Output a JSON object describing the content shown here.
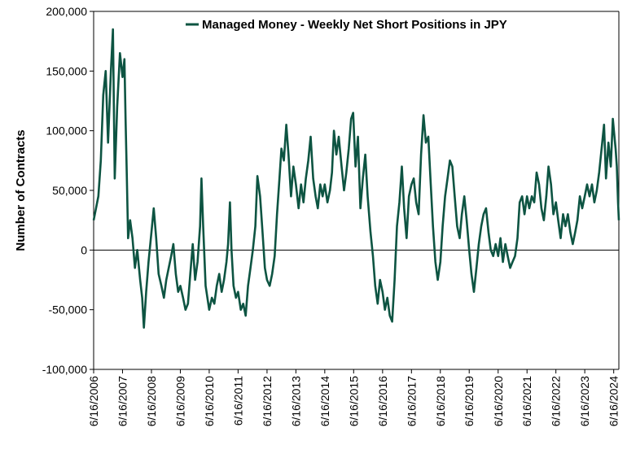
{
  "chart_data": {
    "type": "line",
    "title": "",
    "xlabel": "",
    "ylabel": "Number of Contracts",
    "ylim": [
      -100000,
      200000
    ],
    "y_ticks": [
      200000,
      150000,
      100000,
      50000,
      0,
      -50000,
      -100000
    ],
    "y_tick_labels": [
      "200,000",
      "150,000",
      "100,000",
      "50,000",
      "0",
      "-50,000",
      "-100,000"
    ],
    "x_ticks": [
      "2006-06-16",
      "2007-06-16",
      "2008-06-16",
      "2009-06-16",
      "2010-06-16",
      "2011-06-16",
      "2012-06-16",
      "2013-06-16",
      "2014-06-16",
      "2015-06-16",
      "2016-06-16",
      "2017-06-16",
      "2018-06-16",
      "2019-06-16",
      "2020-06-16",
      "2021-06-16",
      "2022-06-16",
      "2023-06-16",
      "2024-06-16"
    ],
    "x_tick_labels": [
      "6/16/2006",
      "6/16/2007",
      "6/16/2008",
      "6/16/2009",
      "6/16/2010",
      "6/16/2011",
      "6/16/2012",
      "6/16/2013",
      "6/16/2014",
      "6/16/2015",
      "6/16/2016",
      "6/16/2017",
      "6/16/2018",
      "6/16/2019",
      "6/16/2020",
      "6/16/2021",
      "6/16/2022",
      "6/16/2023",
      "6/16/2024"
    ],
    "xlim": [
      "2006-06-16",
      "2024-08-20"
    ],
    "grid": false,
    "legend_position": "top-right",
    "series": [
      {
        "name": "Managed Money - Weekly Net Short Positions in JPY",
        "color": "#0d5442",
        "points": [
          [
            "2006-06-16",
            25000
          ],
          [
            "2006-08-15",
            45000
          ],
          [
            "2006-09-15",
            75000
          ],
          [
            "2006-10-15",
            130000
          ],
          [
            "2006-11-15",
            150000
          ],
          [
            "2006-12-15",
            90000
          ],
          [
            "2007-01-20",
            150000
          ],
          [
            "2007-02-15",
            185000
          ],
          [
            "2007-03-10",
            60000
          ],
          [
            "2007-04-10",
            120000
          ],
          [
            "2007-05-15",
            165000
          ],
          [
            "2007-06-16",
            145000
          ],
          [
            "2007-07-10",
            160000
          ],
          [
            "2007-07-25",
            110000
          ],
          [
            "2007-08-10",
            60000
          ],
          [
            "2007-08-25",
            10000
          ],
          [
            "2007-09-20",
            25000
          ],
          [
            "2007-10-20",
            10000
          ],
          [
            "2007-11-20",
            -15000
          ],
          [
            "2007-12-20",
            0
          ],
          [
            "2008-01-25",
            -25000
          ],
          [
            "2008-02-20",
            -40000
          ],
          [
            "2008-03-12",
            -65000
          ],
          [
            "2008-04-10",
            -35000
          ],
          [
            "2008-05-10",
            -10000
          ],
          [
            "2008-06-16",
            15000
          ],
          [
            "2008-07-15",
            35000
          ],
          [
            "2008-08-15",
            10000
          ],
          [
            "2008-09-15",
            -20000
          ],
          [
            "2008-10-20",
            -30000
          ],
          [
            "2008-11-20",
            -40000
          ],
          [
            "2008-12-20",
            -25000
          ],
          [
            "2009-01-20",
            -15000
          ],
          [
            "2009-02-20",
            -5000
          ],
          [
            "2009-03-20",
            5000
          ],
          [
            "2009-04-20",
            -20000
          ],
          [
            "2009-05-20",
            -35000
          ],
          [
            "2009-06-16",
            -30000
          ],
          [
            "2009-07-20",
            -40000
          ],
          [
            "2009-08-20",
            -50000
          ],
          [
            "2009-09-20",
            -45000
          ],
          [
            "2009-10-20",
            -20000
          ],
          [
            "2009-11-20",
            5000
          ],
          [
            "2009-12-20",
            -25000
          ],
          [
            "2010-01-20",
            -10000
          ],
          [
            "2010-02-20",
            20000
          ],
          [
            "2010-03-10",
            60000
          ],
          [
            "2010-04-01",
            20000
          ],
          [
            "2010-05-01",
            -30000
          ],
          [
            "2010-06-16",
            -50000
          ],
          [
            "2010-07-20",
            -40000
          ],
          [
            "2010-08-20",
            -45000
          ],
          [
            "2010-09-20",
            -30000
          ],
          [
            "2010-10-20",
            -20000
          ],
          [
            "2010-11-20",
            -35000
          ],
          [
            "2010-12-20",
            -25000
          ],
          [
            "2011-01-20",
            -10000
          ],
          [
            "2011-02-10",
            5000
          ],
          [
            "2011-03-05",
            40000
          ],
          [
            "2011-03-25",
            0
          ],
          [
            "2011-04-20",
            -30000
          ],
          [
            "2011-05-20",
            -40000
          ],
          [
            "2011-06-16",
            -35000
          ],
          [
            "2011-07-20",
            -50000
          ],
          [
            "2011-08-20",
            -45000
          ],
          [
            "2011-09-20",
            -55000
          ],
          [
            "2011-10-20",
            -30000
          ],
          [
            "2011-11-20",
            -15000
          ],
          [
            "2011-12-20",
            0
          ],
          [
            "2012-01-20",
            20000
          ],
          [
            "2012-02-15",
            62000
          ],
          [
            "2012-03-20",
            45000
          ],
          [
            "2012-04-20",
            15000
          ],
          [
            "2012-05-20",
            -15000
          ],
          [
            "2012-06-16",
            -25000
          ],
          [
            "2012-07-20",
            -30000
          ],
          [
            "2012-08-20",
            -20000
          ],
          [
            "2012-09-20",
            -5000
          ],
          [
            "2012-10-20",
            30000
          ],
          [
            "2012-11-20",
            60000
          ],
          [
            "2012-12-15",
            85000
          ],
          [
            "2013-01-15",
            75000
          ],
          [
            "2013-02-15",
            105000
          ],
          [
            "2013-03-15",
            80000
          ],
          [
            "2013-04-15",
            45000
          ],
          [
            "2013-05-15",
            70000
          ],
          [
            "2013-06-16",
            55000
          ],
          [
            "2013-07-20",
            35000
          ],
          [
            "2013-08-20",
            55000
          ],
          [
            "2013-09-20",
            40000
          ],
          [
            "2013-10-20",
            60000
          ],
          [
            "2013-11-20",
            75000
          ],
          [
            "2013-12-20",
            95000
          ],
          [
            "2014-01-20",
            60000
          ],
          [
            "2014-02-20",
            45000
          ],
          [
            "2014-03-20",
            35000
          ],
          [
            "2014-04-20",
            55000
          ],
          [
            "2014-05-20",
            45000
          ],
          [
            "2014-06-16",
            55000
          ],
          [
            "2014-07-20",
            40000
          ],
          [
            "2014-08-20",
            50000
          ],
          [
            "2014-09-15",
            65000
          ],
          [
            "2014-10-10",
            100000
          ],
          [
            "2014-11-10",
            80000
          ],
          [
            "2014-12-10",
            95000
          ],
          [
            "2015-01-15",
            70000
          ],
          [
            "2015-02-15",
            50000
          ],
          [
            "2015-03-15",
            65000
          ],
          [
            "2015-04-15",
            85000
          ],
          [
            "2015-05-15",
            110000
          ],
          [
            "2015-06-10",
            115000
          ],
          [
            "2015-07-10",
            70000
          ],
          [
            "2015-08-10",
            95000
          ],
          [
            "2015-09-10",
            35000
          ],
          [
            "2015-10-10",
            60000
          ],
          [
            "2015-11-10",
            80000
          ],
          [
            "2015-12-10",
            45000
          ],
          [
            "2016-01-15",
            15000
          ],
          [
            "2016-02-15",
            -5000
          ],
          [
            "2016-03-15",
            -30000
          ],
          [
            "2016-04-15",
            -45000
          ],
          [
            "2016-05-15",
            -25000
          ],
          [
            "2016-06-16",
            -35000
          ],
          [
            "2016-07-15",
            -50000
          ],
          [
            "2016-08-15",
            -40000
          ],
          [
            "2016-09-15",
            -55000
          ],
          [
            "2016-10-15",
            -60000
          ],
          [
            "2016-11-15",
            -25000
          ],
          [
            "2016-12-15",
            20000
          ],
          [
            "2017-01-15",
            40000
          ],
          [
            "2017-02-15",
            70000
          ],
          [
            "2017-03-15",
            35000
          ],
          [
            "2017-04-15",
            10000
          ],
          [
            "2017-05-15",
            45000
          ],
          [
            "2017-06-16",
            55000
          ],
          [
            "2017-07-15",
            60000
          ],
          [
            "2017-08-15",
            40000
          ],
          [
            "2017-09-15",
            30000
          ],
          [
            "2017-10-15",
            80000
          ],
          [
            "2017-11-15",
            113000
          ],
          [
            "2017-12-15",
            90000
          ],
          [
            "2018-01-15",
            95000
          ],
          [
            "2018-02-15",
            55000
          ],
          [
            "2018-03-15",
            20000
          ],
          [
            "2018-04-15",
            -10000
          ],
          [
            "2018-05-15",
            -25000
          ],
          [
            "2018-06-16",
            -10000
          ],
          [
            "2018-07-15",
            20000
          ],
          [
            "2018-08-15",
            45000
          ],
          [
            "2018-09-15",
            60000
          ],
          [
            "2018-10-15",
            75000
          ],
          [
            "2018-11-15",
            70000
          ],
          [
            "2018-12-15",
            45000
          ],
          [
            "2019-01-15",
            20000
          ],
          [
            "2019-02-15",
            10000
          ],
          [
            "2019-03-15",
            30000
          ],
          [
            "2019-04-15",
            45000
          ],
          [
            "2019-05-15",
            25000
          ],
          [
            "2019-06-16",
            0
          ],
          [
            "2019-07-15",
            -20000
          ],
          [
            "2019-08-15",
            -35000
          ],
          [
            "2019-09-15",
            -15000
          ],
          [
            "2019-10-15",
            5000
          ],
          [
            "2019-11-15",
            20000
          ],
          [
            "2019-12-15",
            30000
          ],
          [
            "2020-01-15",
            35000
          ],
          [
            "2020-02-15",
            15000
          ],
          [
            "2020-03-15",
            0
          ],
          [
            "2020-04-15",
            -5000
          ],
          [
            "2020-05-15",
            5000
          ],
          [
            "2020-06-16",
            -5000
          ],
          [
            "2020-07-15",
            10000
          ],
          [
            "2020-08-15",
            -10000
          ],
          [
            "2020-09-15",
            5000
          ],
          [
            "2020-10-15",
            -5000
          ],
          [
            "2020-11-15",
            -15000
          ],
          [
            "2020-12-15",
            -10000
          ],
          [
            "2021-01-15",
            -5000
          ],
          [
            "2021-02-15",
            10000
          ],
          [
            "2021-03-15",
            40000
          ],
          [
            "2021-04-15",
            45000
          ],
          [
            "2021-05-15",
            30000
          ],
          [
            "2021-06-16",
            45000
          ],
          [
            "2021-07-15",
            35000
          ],
          [
            "2021-08-15",
            45000
          ],
          [
            "2021-09-15",
            40000
          ],
          [
            "2021-10-15",
            65000
          ],
          [
            "2021-11-15",
            55000
          ],
          [
            "2021-12-15",
            35000
          ],
          [
            "2022-01-15",
            25000
          ],
          [
            "2022-02-15",
            45000
          ],
          [
            "2022-03-15",
            70000
          ],
          [
            "2022-04-15",
            55000
          ],
          [
            "2022-05-15",
            30000
          ],
          [
            "2022-06-16",
            40000
          ],
          [
            "2022-07-15",
            25000
          ],
          [
            "2022-08-15",
            10000
          ],
          [
            "2022-09-15",
            30000
          ],
          [
            "2022-10-15",
            20000
          ],
          [
            "2022-11-15",
            30000
          ],
          [
            "2022-12-15",
            15000
          ],
          [
            "2023-01-15",
            5000
          ],
          [
            "2023-02-15",
            15000
          ],
          [
            "2023-03-15",
            25000
          ],
          [
            "2023-04-15",
            45000
          ],
          [
            "2023-05-15",
            35000
          ],
          [
            "2023-06-16",
            45000
          ],
          [
            "2023-07-15",
            55000
          ],
          [
            "2023-08-15",
            45000
          ],
          [
            "2023-09-15",
            55000
          ],
          [
            "2023-10-15",
            40000
          ],
          [
            "2023-11-15",
            50000
          ],
          [
            "2023-12-15",
            65000
          ],
          [
            "2024-01-15",
            85000
          ],
          [
            "2024-02-15",
            105000
          ],
          [
            "2024-03-10",
            60000
          ],
          [
            "2024-04-10",
            90000
          ],
          [
            "2024-05-10",
            70000
          ],
          [
            "2024-06-05",
            110000
          ],
          [
            "2024-06-25",
            95000
          ],
          [
            "2024-07-10",
            85000
          ],
          [
            "2024-07-25",
            70000
          ],
          [
            "2024-08-10",
            40000
          ],
          [
            "2024-08-20",
            25000
          ]
        ]
      }
    ]
  }
}
